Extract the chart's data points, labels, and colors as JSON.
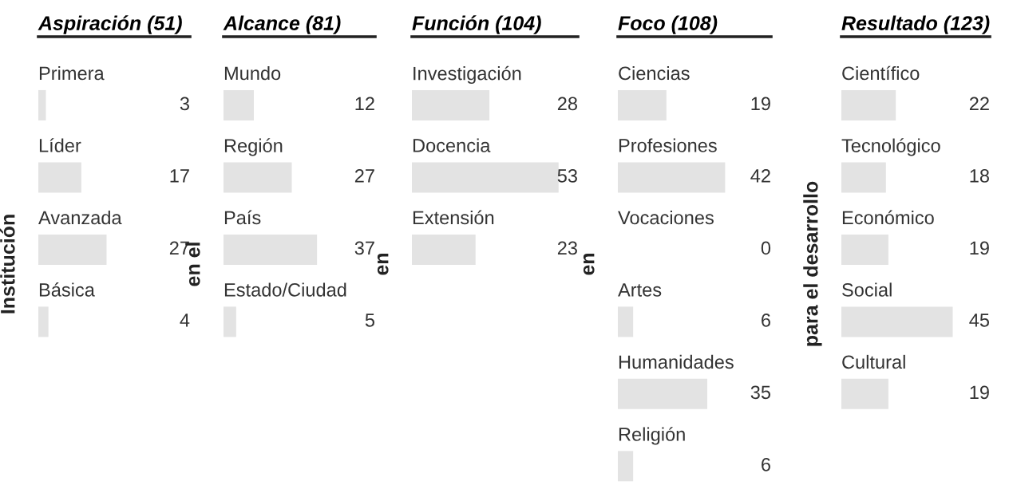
{
  "chart_data": [
    {
      "type": "bar",
      "orientation": "horizontal",
      "title": "Aspiración (51)",
      "annotations": [
        "Institución"
      ],
      "categories": [
        "Primera",
        "Líder",
        "Avanzada",
        "Básica"
      ],
      "values": [
        3,
        17,
        27,
        4
      ],
      "color": "#e3e3e3",
      "data_labels": true,
      "xlim": [
        0,
        60
      ]
    },
    {
      "type": "bar",
      "orientation": "horizontal",
      "title": "Alcance (81)",
      "annotations": [
        "en el"
      ],
      "categories": [
        "Mundo",
        "Región",
        "País",
        "Estado/Ciudad"
      ],
      "values": [
        12,
        27,
        37,
        5
      ],
      "color": "#e3e3e3",
      "data_labels": true,
      "xlim": [
        0,
        60
      ]
    },
    {
      "type": "bar",
      "orientation": "horizontal",
      "title": "Función (104)",
      "annotations": [
        "en"
      ],
      "categories": [
        "Investigación",
        "Docencia",
        "Extensión"
      ],
      "values": [
        28,
        53,
        23
      ],
      "color": "#e3e3e3",
      "data_labels": true,
      "xlim": [
        0,
        60
      ]
    },
    {
      "type": "bar",
      "orientation": "horizontal",
      "title": "Foco (108)",
      "annotations": [
        "en"
      ],
      "categories": [
        "Ciencias",
        "Profesiones",
        "Vocaciones",
        "Artes",
        "Humanidades",
        "Religión"
      ],
      "values": [
        19,
        42,
        0,
        6,
        35,
        6
      ],
      "color": "#e3e3e3",
      "data_labels": true,
      "xlim": [
        0,
        60
      ]
    },
    {
      "type": "bar",
      "orientation": "horizontal",
      "title": "Resultado (123)",
      "annotations": [
        "para el desarrollo"
      ],
      "categories": [
        "Científico",
        "Tecnológico",
        "Económico",
        "Social",
        "Cultural"
      ],
      "values": [
        22,
        18,
        19,
        45,
        19
      ],
      "color": "#e3e3e3",
      "data_labels": true,
      "xlim": [
        0,
        60
      ]
    }
  ]
}
